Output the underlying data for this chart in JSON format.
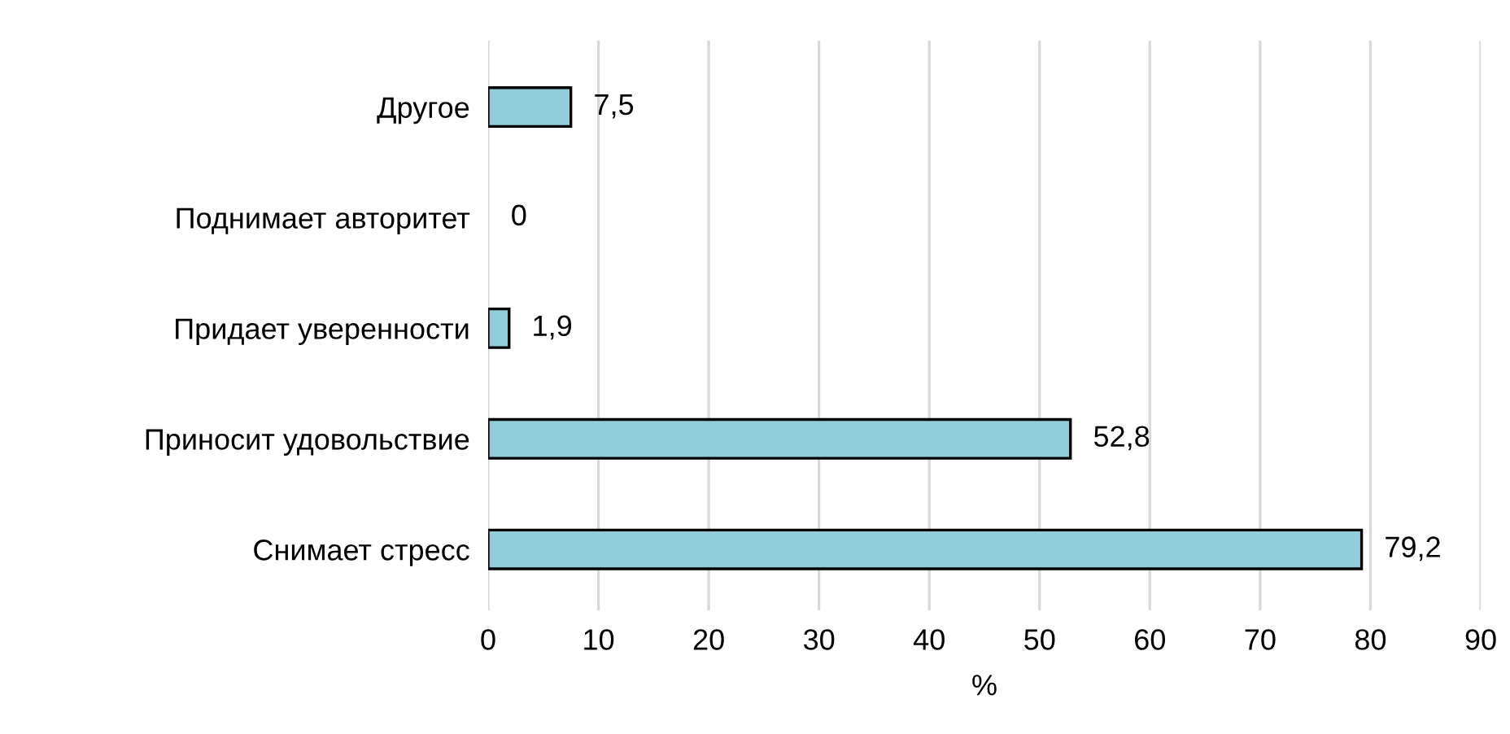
{
  "chart_data": {
    "type": "bar",
    "orientation": "horizontal",
    "xlabel": "%",
    "categories": [
      "Другое",
      "Поднимает авторитет",
      "Придает уверенности",
      "Приносит удовольствие",
      "Снимает стресс"
    ],
    "values": [
      7.5,
      0,
      1.9,
      52.8,
      79.2
    ],
    "value_labels": [
      "7,5",
      "0",
      "1,9",
      "52,8",
      "79,2"
    ],
    "color": "#92cddc",
    "xlim": [
      0,
      90
    ],
    "xticks": [
      0,
      10,
      20,
      30,
      40,
      50,
      60,
      70,
      80,
      90
    ],
    "grid": "x",
    "legend": false
  }
}
